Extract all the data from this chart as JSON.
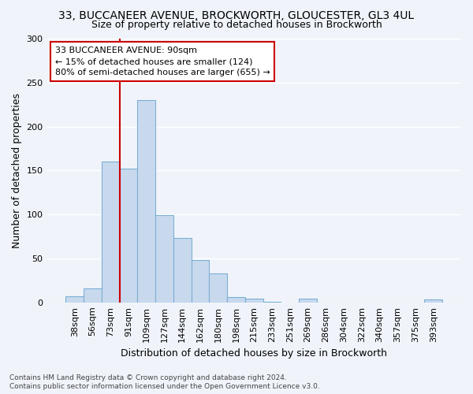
{
  "title1": "33, BUCCANEER AVENUE, BROCKWORTH, GLOUCESTER, GL3 4UL",
  "title2": "Size of property relative to detached houses in Brockworth",
  "xlabel": "Distribution of detached houses by size in Brockworth",
  "ylabel": "Number of detached properties",
  "categories": [
    "38sqm",
    "56sqm",
    "73sqm",
    "91sqm",
    "109sqm",
    "127sqm",
    "144sqm",
    "162sqm",
    "180sqm",
    "198sqm",
    "215sqm",
    "233sqm",
    "251sqm",
    "269sqm",
    "286sqm",
    "304sqm",
    "322sqm",
    "340sqm",
    "357sqm",
    "375sqm",
    "393sqm"
  ],
  "values": [
    7,
    16,
    160,
    152,
    230,
    99,
    73,
    48,
    33,
    6,
    4,
    1,
    0,
    4,
    0,
    0,
    0,
    0,
    0,
    0,
    3
  ],
  "bar_color": "#c8d9ee",
  "bar_edge_color": "#7bafd4",
  "vline_color": "#cc0000",
  "vline_x": 3.0,
  "annotation_text": "33 BUCCANEER AVENUE: 90sqm\n← 15% of detached houses are smaller (124)\n80% of semi-detached houses are larger (655) →",
  "annotation_box_color": "white",
  "annotation_box_edge": "#cc0000",
  "footnote1": "Contains HM Land Registry data © Crown copyright and database right 2024.",
  "footnote2": "Contains public sector information licensed under the Open Government Licence v3.0.",
  "ylim": [
    0,
    300
  ],
  "yticks": [
    0,
    50,
    100,
    150,
    200,
    250,
    300
  ],
  "bg_color": "#f0f4fa",
  "grid_color": "#ffffff",
  "title1_fontsize": 10,
  "title2_fontsize": 9,
  "tick_fontsize": 8,
  "ylabel_fontsize": 9,
  "xlabel_fontsize": 9,
  "footnote_fontsize": 6.5
}
